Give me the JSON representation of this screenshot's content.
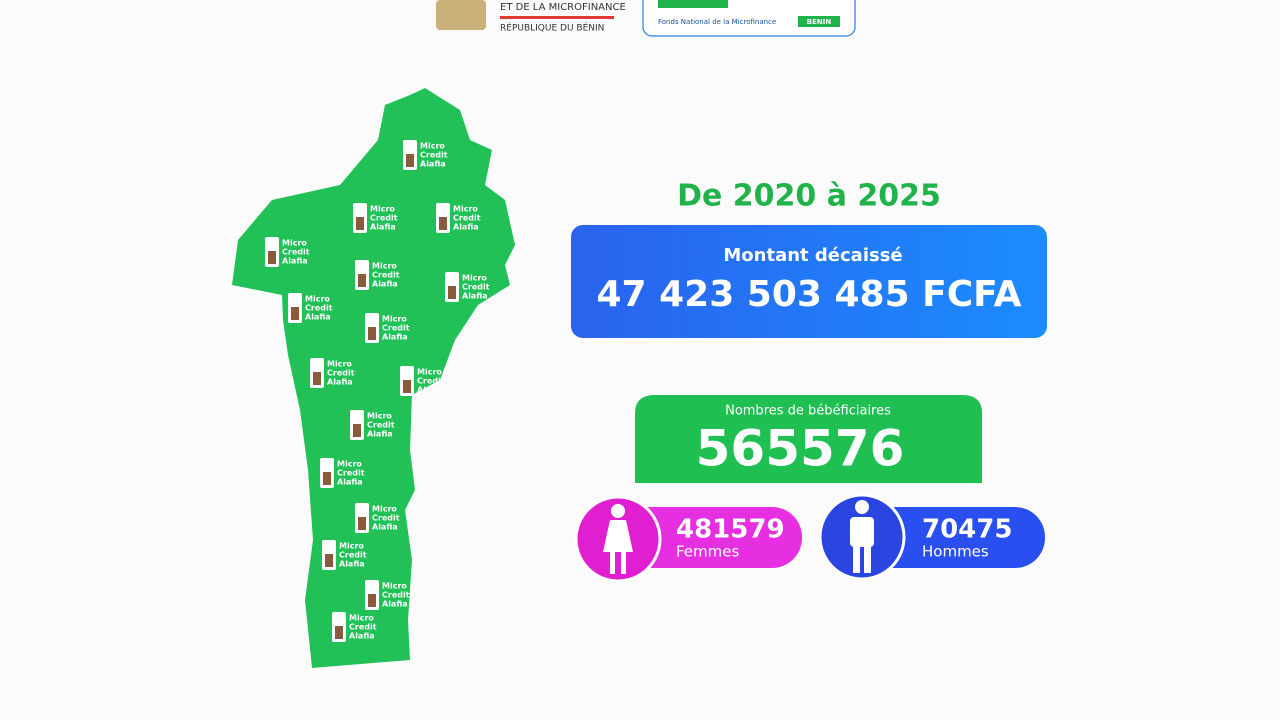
{
  "header": {
    "ministry_line": "ET DE LA MICROFINANCE",
    "country": "RÉPUBLIQUE DU BÉNIN",
    "fund_name": "Fonds National de la Microfinance",
    "fund_country": "BENIN"
  },
  "map": {
    "badge_lines": [
      "Micro",
      "Credit",
      "Alafia"
    ]
  },
  "period": "De 2020 à 2025",
  "amount": {
    "label": "Montant décaissé",
    "value": "47 423 503 485 FCFA"
  },
  "beneficiaries": {
    "label": "Nombres de bébéficiaires",
    "value": "565576"
  },
  "women": {
    "value": "481579",
    "label": "Femmes"
  },
  "men": {
    "value": "70475",
    "label": "Hommes"
  }
}
